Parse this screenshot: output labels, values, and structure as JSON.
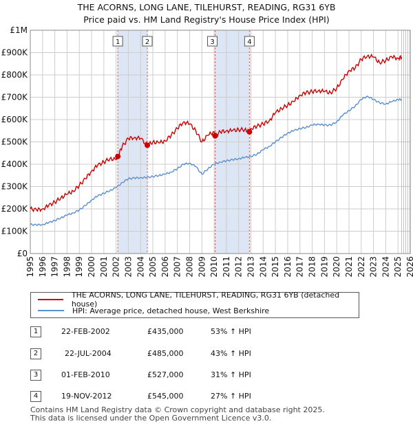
{
  "title_line1": "THE ACORNS, LONG LANE, TILEHURST, READING, RG31 6YB",
  "title_line2": "Price paid vs. HM Land Registry's House Price Index (HPI)",
  "legend": {
    "red_label": "THE ACORNS, LONG LANE, TILEHURST, READING, RG31 6YB (detached house)",
    "blue_label": "HPI: Average price, detached house, West Berkshire"
  },
  "colors": {
    "price_line": "#cc0000",
    "hpi_line": "#5b8fce",
    "shade": "#dde6f5",
    "marker_line": "#e06666",
    "grid": "#cccccc"
  },
  "transactions": [
    {
      "num": "1",
      "date": "22-FEB-2002",
      "price": "£435,000",
      "hpi": "53% ↑ HPI"
    },
    {
      "num": "2",
      "date": "22-JUL-2004",
      "price": "£485,000",
      "hpi": "43% ↑ HPI"
    },
    {
      "num": "3",
      "date": "01-FEB-2010",
      "price": "£527,000",
      "hpi": "31% ↑ HPI"
    },
    {
      "num": "4",
      "date": "19-NOV-2012",
      "price": "£545,000",
      "hpi": "27% ↑ HPI"
    }
  ],
  "footer_line1": "Contains HM Land Registry data © Crown copyright and database right 2025.",
  "footer_line2": "This data is licensed under the Open Government Licence v3.0.",
  "chart_data": {
    "type": "line",
    "title": "THE ACORNS, LONG LANE, TILEHURST, READING, RG31 6YB",
    "subtitle": "Price paid vs. HM Land Registry's House Price Index (HPI)",
    "xlim": [
      1995,
      2026
    ],
    "ylim": [
      0,
      1000000
    ],
    "x_ticks": [
      1995,
      1996,
      1997,
      1998,
      1999,
      2000,
      2001,
      2002,
      2003,
      2004,
      2005,
      2006,
      2007,
      2008,
      2009,
      2010,
      2011,
      2012,
      2013,
      2014,
      2015,
      2016,
      2017,
      2018,
      2019,
      2020,
      2021,
      2022,
      2023,
      2024,
      2025,
      2026
    ],
    "y_ticks": [
      {
        "value": 0,
        "label": "£0"
      },
      {
        "value": 100000,
        "label": "£100K"
      },
      {
        "value": 200000,
        "label": "£200K"
      },
      {
        "value": 300000,
        "label": "£300K"
      },
      {
        "value": 400000,
        "label": "£400K"
      },
      {
        "value": 500000,
        "label": "£500K"
      },
      {
        "value": 600000,
        "label": "£600K"
      },
      {
        "value": 700000,
        "label": "£700K"
      },
      {
        "value": 800000,
        "label": "£800K"
      },
      {
        "value": 900000,
        "label": "£900K"
      },
      {
        "value": 1000000,
        "label": "£1M"
      }
    ],
    "shaded_ranges": [
      [
        2002.14,
        2004.55
      ],
      [
        2010.08,
        2012.88
      ]
    ],
    "future_start": 2025.3,
    "sales": [
      {
        "label": "1",
        "x": 2002.14,
        "y": 435000
      },
      {
        "label": "2",
        "x": 2004.55,
        "y": 485000
      },
      {
        "label": "3",
        "x": 2010.08,
        "y": 527000
      },
      {
        "label": "4",
        "x": 2012.88,
        "y": 545000
      }
    ],
    "series": [
      {
        "name": "THE ACORNS, LONG LANE, TILEHURST, READING, RG31 6YB (detached house)",
        "x": [
          1995,
          1995.5,
          1996,
          1996.5,
          1997,
          1997.5,
          1998,
          1998.5,
          1999,
          1999.5,
          2000,
          2000.5,
          2001,
          2001.5,
          2002,
          2002.14,
          2002.5,
          2003,
          2003.5,
          2004,
          2004.55,
          2005,
          2005.5,
          2006,
          2006.5,
          2007,
          2007.5,
          2008,
          2008.5,
          2009,
          2009.5,
          2010,
          2010.08,
          2010.5,
          2011,
          2011.5,
          2012,
          2012.5,
          2012.88,
          2013,
          2013.5,
          2014,
          2014.5,
          2015,
          2015.5,
          2016,
          2016.5,
          2017,
          2017.5,
          2018,
          2018.5,
          2019,
          2019.5,
          2020,
          2020.5,
          2021,
          2021.5,
          2022,
          2022.5,
          2023,
          2023.5,
          2024,
          2024.5,
          2025,
          2025.3
        ],
        "y": [
          200000,
          195000,
          200000,
          215000,
          230000,
          250000,
          265000,
          280000,
          305000,
          335000,
          370000,
          395000,
          410000,
          425000,
          420000,
          435000,
          480000,
          515000,
          520000,
          515000,
          485000,
          500000,
          495000,
          505000,
          530000,
          560000,
          590000,
          580000,
          550000,
          500000,
          530000,
          545000,
          527000,
          545000,
          550000,
          550000,
          555000,
          555000,
          545000,
          560000,
          570000,
          580000,
          595000,
          630000,
          650000,
          665000,
          680000,
          710000,
          720000,
          725000,
          730000,
          725000,
          720000,
          740000,
          780000,
          820000,
          830000,
          870000,
          885000,
          880000,
          855000,
          865000,
          880000,
          875000,
          880000
        ]
      },
      {
        "name": "HPI: Average price, detached house, West Berkshire",
        "x": [
          1995,
          1995.5,
          1996,
          1996.5,
          1997,
          1997.5,
          1998,
          1998.5,
          1999,
          1999.5,
          2000,
          2000.5,
          2001,
          2001.5,
          2002,
          2002.5,
          2003,
          2003.5,
          2004,
          2004.5,
          2005,
          2005.5,
          2006,
          2006.5,
          2007,
          2007.5,
          2008,
          2008.5,
          2009,
          2009.5,
          2010,
          2010.5,
          2011,
          2011.5,
          2012,
          2012.5,
          2013,
          2013.5,
          2014,
          2014.5,
          2015,
          2015.5,
          2016,
          2016.5,
          2017,
          2017.5,
          2018,
          2018.5,
          2019,
          2019.5,
          2020,
          2020.5,
          2021,
          2021.5,
          2022,
          2022.5,
          2023,
          2023.5,
          2024,
          2024.5,
          2025,
          2025.3
        ],
        "y": [
          130000,
          128000,
          130000,
          138000,
          148000,
          160000,
          172000,
          182000,
          195000,
          215000,
          240000,
          258000,
          270000,
          282000,
          295000,
          318000,
          335000,
          338000,
          340000,
          340000,
          345000,
          350000,
          355000,
          365000,
          380000,
          400000,
          405000,
          390000,
          355000,
          380000,
          400000,
          410000,
          415000,
          420000,
          425000,
          430000,
          435000,
          445000,
          465000,
          480000,
          500000,
          520000,
          540000,
          550000,
          560000,
          565000,
          575000,
          580000,
          575000,
          575000,
          590000,
          620000,
          640000,
          660000,
          690000,
          705000,
          690000,
          675000,
          670000,
          680000,
          690000,
          690000
        ]
      }
    ]
  }
}
